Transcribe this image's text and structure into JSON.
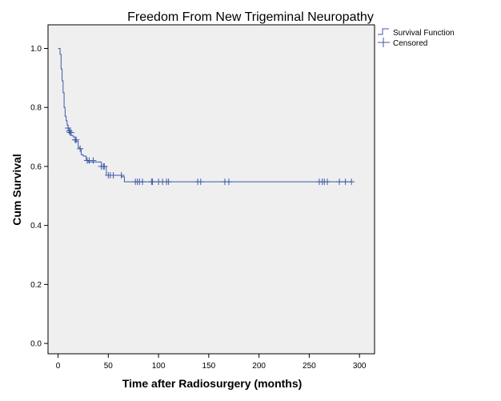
{
  "chart_data": {
    "type": "line",
    "title": "Freedom From New Trigeminal Neuropathy",
    "xlabel": "Time after Radiosurgery (months)",
    "ylabel": "Cum Survival",
    "xlim": [
      -10,
      315
    ],
    "ylim": [
      -0.035,
      1.08
    ],
    "xticks": [
      0,
      50,
      100,
      150,
      200,
      250,
      300
    ],
    "yticks": [
      0.0,
      0.2,
      0.4,
      0.6,
      0.8,
      1.0
    ],
    "ytick_labels": [
      "0.0",
      "0.2",
      "0.4",
      "0.6",
      "0.8",
      "1.0"
    ],
    "legend": {
      "placement": "top-right, outside plot",
      "entries": [
        "Survival Function",
        "Censored"
      ]
    },
    "colors": {
      "series": "#3C5AA8",
      "plot_bg": "#EFEFEF",
      "axis": "#000000"
    },
    "grid": false,
    "series": [
      {
        "name": "Survival Function",
        "step": true,
        "x": [
          0,
          2,
          3,
          4,
          5,
          6,
          7,
          8,
          9,
          10,
          11,
          12,
          13,
          15,
          17,
          20,
          21,
          23,
          25,
          28,
          30,
          43,
          48,
          63,
          66,
          293
        ],
        "y": [
          1.0,
          0.98,
          0.93,
          0.89,
          0.85,
          0.8,
          0.77,
          0.755,
          0.74,
          0.73,
          0.72,
          0.715,
          0.705,
          0.7,
          0.685,
          0.665,
          0.66,
          0.64,
          0.635,
          0.62,
          0.615,
          0.6,
          0.57,
          0.565,
          0.548,
          0.548
        ]
      },
      {
        "name": "Censored",
        "points": [
          [
            10,
            0.73
          ],
          [
            11,
            0.72
          ],
          [
            12,
            0.715
          ],
          [
            13,
            0.715
          ],
          [
            17,
            0.69
          ],
          [
            18,
            0.69
          ],
          [
            22,
            0.66
          ],
          [
            29,
            0.62
          ],
          [
            31,
            0.62
          ],
          [
            35,
            0.62
          ],
          [
            43,
            0.6
          ],
          [
            45,
            0.6
          ],
          [
            46,
            0.6
          ],
          [
            50,
            0.57
          ],
          [
            52,
            0.57
          ],
          [
            55,
            0.57
          ],
          [
            63,
            0.57
          ],
          [
            77,
            0.548
          ],
          [
            79,
            0.548
          ],
          [
            81,
            0.548
          ],
          [
            84,
            0.548
          ],
          [
            93,
            0.548
          ],
          [
            94,
            0.548
          ],
          [
            100,
            0.548
          ],
          [
            104,
            0.548
          ],
          [
            108,
            0.548
          ],
          [
            110,
            0.548
          ],
          [
            139,
            0.548
          ],
          [
            142,
            0.548
          ],
          [
            166,
            0.548
          ],
          [
            170,
            0.548
          ],
          [
            260,
            0.548
          ],
          [
            263,
            0.548
          ],
          [
            265,
            0.548
          ],
          [
            268,
            0.548
          ],
          [
            280,
            0.548
          ],
          [
            286,
            0.548
          ],
          [
            292,
            0.548
          ]
        ]
      }
    ]
  }
}
